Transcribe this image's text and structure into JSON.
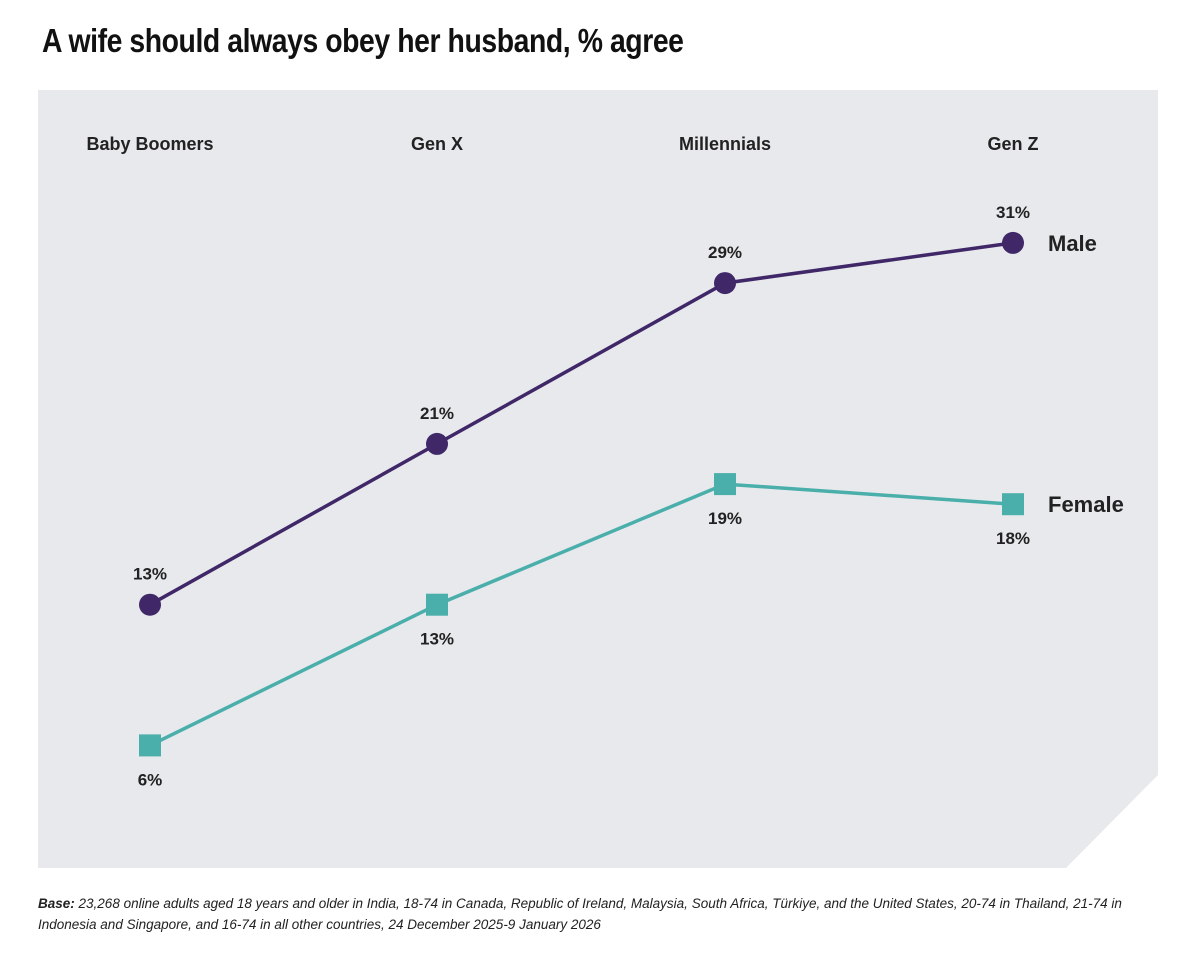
{
  "chart_data": {
    "type": "line",
    "title": "A wife should always obey her husband, % agree",
    "categories": [
      "Baby Boomers",
      "Gen X",
      "Millennials",
      "Gen Z"
    ],
    "series": [
      {
        "name": "Male",
        "values": [
          13,
          21,
          29,
          31
        ],
        "color": "#3f2768",
        "marker": "circle"
      },
      {
        "name": "Female",
        "values": [
          6,
          13,
          19,
          18
        ],
        "color": "#4aafab",
        "marker": "square"
      }
    ],
    "value_suffix": "%",
    "background": "#e7e9ec"
  },
  "footer": {
    "label": "Base:",
    "text": " 23,268 online adults aged 18 years and older in India, 18-74 in Canada, Republic of Ireland, Malaysia, South Africa, Türkiye, and the United States, 20-74 in Thailand, 21-74 in Indonesia and Singapore, and 16-74 in all other countries, 24 December 2025-9 January 2026"
  }
}
